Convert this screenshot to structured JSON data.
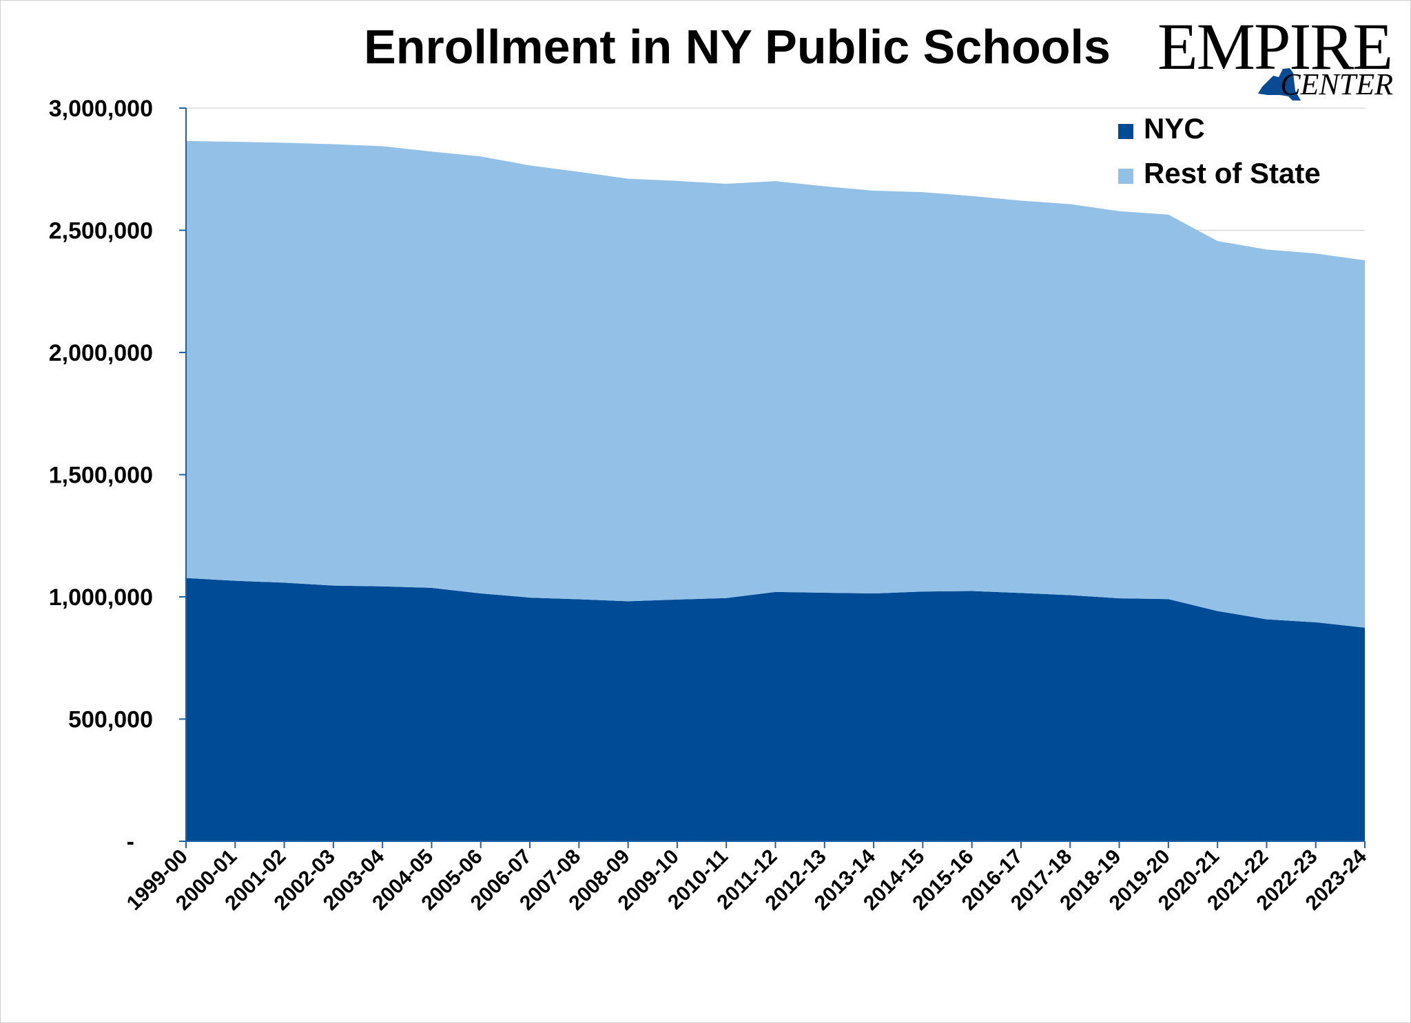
{
  "logo": {
    "line1": "EMPIRE",
    "line2": "CENTER",
    "state_shape_icon": "new-york-state-silhouette",
    "state_color": "#0a4a93"
  },
  "colors": {
    "nyc": "#004b96",
    "rest": "#92c0e6",
    "axis": "#1f5fa3",
    "grid": "#d9d9d9"
  },
  "chart_data": {
    "type": "area",
    "stacked": true,
    "title": "Enrollment in NY Public Schools",
    "xlabel": "",
    "ylabel": "",
    "ylim": [
      0,
      3000000
    ],
    "y_ticks": [
      0,
      500000,
      1000000,
      1500000,
      2000000,
      2500000,
      3000000
    ],
    "y_tick_labels": [
      "-",
      "500,000",
      "1,000,000",
      "1,500,000",
      "2,000,000",
      "2,500,000",
      "3,000,000"
    ],
    "grid": "horizontal",
    "legend_position": "top-right",
    "categories": [
      "1999-00",
      "2000-01",
      "2001-02",
      "2002-03",
      "2003-04",
      "2004-05",
      "2005-06",
      "2006-07",
      "2007-08",
      "2008-09",
      "2009-10",
      "2010-11",
      "2011-12",
      "2012-13",
      "2013-14",
      "2014-15",
      "2015-16",
      "2016-17",
      "2017-18",
      "2018-19",
      "2019-20",
      "2020-21",
      "2021-22",
      "2022-23",
      "2023-24"
    ],
    "series": [
      {
        "name": "NYC",
        "color": "#004b96",
        "values": [
          1077000,
          1066000,
          1058000,
          1046000,
          1043000,
          1037000,
          1014000,
          997000,
          990000,
          982000,
          989000,
          995000,
          1020000,
          1017000,
          1014000,
          1022000,
          1024000,
          1016000,
          1007000,
          994000,
          991000,
          942000,
          908000,
          896000,
          874000
        ]
      },
      {
        "name": "Rest of State",
        "color": "#92c0e6",
        "values": [
          1788000,
          1796000,
          1800000,
          1806000,
          1801000,
          1785000,
          1788000,
          1768000,
          1749000,
          1729000,
          1713000,
          1695000,
          1681000,
          1663000,
          1648000,
          1634000,
          1616000,
          1605000,
          1600000,
          1584000,
          1573000,
          1514000,
          1513000,
          1509000,
          1503000
        ]
      }
    ]
  }
}
